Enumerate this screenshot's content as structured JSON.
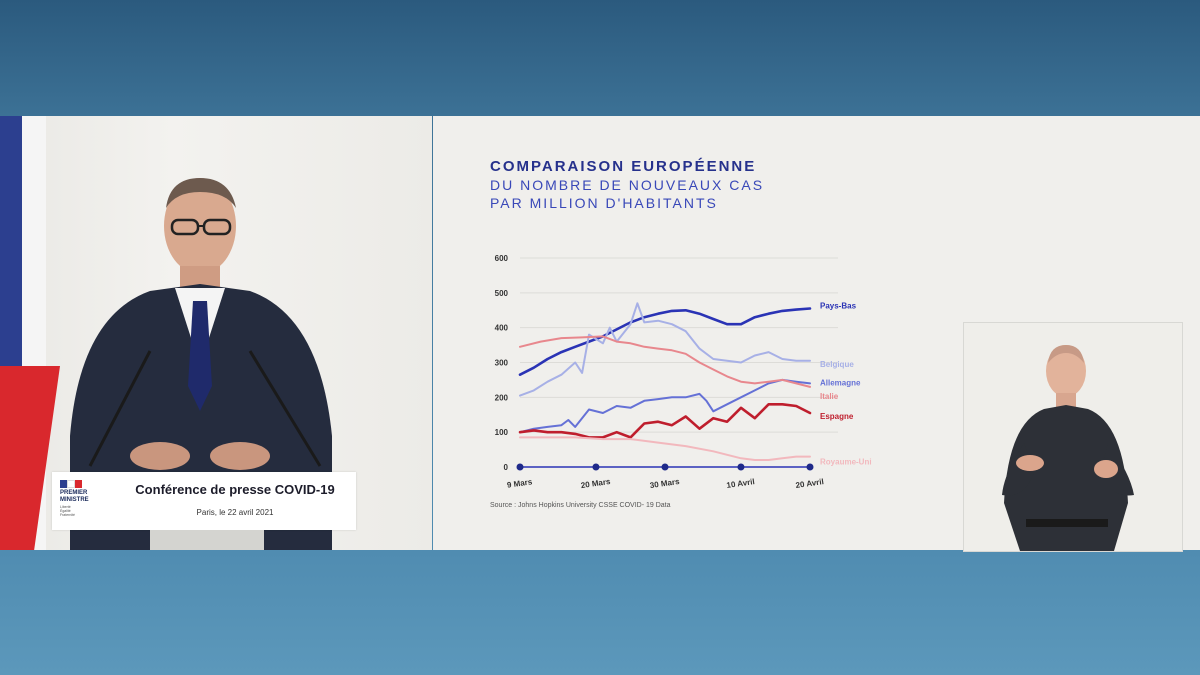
{
  "press": {
    "logo_line1": "PREMIER",
    "logo_line2": "MINISTRE",
    "logo_motto1": "Liberté",
    "logo_motto2": "Égalité",
    "logo_motto3": "Fraternité",
    "title": "Conférence de presse COVID-19",
    "subtitle": "Paris, le 22 avril 2021"
  },
  "chart_data": {
    "type": "line",
    "title_line1": "COMPARAISON EUROPÉENNE",
    "title_line2": "DU NOMBRE DE NOUVEAUX CAS",
    "title_line3": "PAR MILLION D'HABITANTS",
    "source": "Source : Johns Hopkins University CSSE COVID- 19 Data",
    "ylim": [
      0,
      600
    ],
    "yticks": [
      "0",
      "100",
      "200",
      "300",
      "400",
      "500",
      "600"
    ],
    "xlim": [
      0,
      42
    ],
    "xticks": [
      {
        "label": "9 Mars",
        "x": 0
      },
      {
        "label": "20 Mars",
        "x": 11
      },
      {
        "label": "30 Mars",
        "x": 21
      },
      {
        "label": "10 Avril",
        "x": 32
      },
      {
        "label": "20 Avril",
        "x": 42
      }
    ],
    "grid": true,
    "series": [
      {
        "name": "Pays-Bas",
        "color": "#2a33b5",
        "x": [
          0,
          2,
          4,
          6,
          8,
          10,
          12,
          14,
          16,
          18,
          20,
          22,
          24,
          26,
          28,
          30,
          32,
          34,
          36,
          38,
          40,
          42
        ],
        "y": [
          265,
          285,
          310,
          330,
          345,
          360,
          375,
          395,
          415,
          430,
          440,
          448,
          450,
          440,
          425,
          410,
          410,
          430,
          440,
          448,
          452,
          455
        ]
      },
      {
        "name": "Belgique",
        "color": "#a7b0e6",
        "x": [
          0,
          2,
          4,
          6,
          8,
          9,
          10,
          12,
          13,
          14,
          16,
          17,
          18,
          20,
          22,
          24,
          26,
          28,
          30,
          32,
          34,
          36,
          38,
          40,
          42
        ],
        "y": [
          205,
          220,
          245,
          265,
          300,
          270,
          380,
          355,
          400,
          360,
          410,
          470,
          415,
          420,
          410,
          390,
          340,
          310,
          305,
          300,
          320,
          330,
          310,
          305,
          305
        ]
      },
      {
        "name": "Allemagne",
        "color": "#6571d6",
        "x": [
          0,
          2,
          4,
          6,
          7,
          8,
          10,
          12,
          14,
          16,
          18,
          20,
          22,
          24,
          26,
          27,
          28,
          30,
          32,
          34,
          36,
          38,
          40,
          42
        ],
        "y": [
          100,
          110,
          115,
          120,
          135,
          115,
          165,
          155,
          175,
          170,
          190,
          195,
          200,
          200,
          210,
          190,
          160,
          180,
          200,
          220,
          240,
          250,
          245,
          240
        ]
      },
      {
        "name": "Italie",
        "color": "#e8878d",
        "x": [
          0,
          3,
          6,
          9,
          12,
          14,
          16,
          18,
          20,
          22,
          24,
          26,
          28,
          30,
          32,
          34,
          36,
          38,
          40,
          42
        ],
        "y": [
          345,
          360,
          370,
          372,
          375,
          360,
          355,
          345,
          340,
          335,
          325,
          300,
          280,
          260,
          245,
          240,
          245,
          250,
          240,
          230
        ]
      },
      {
        "name": "Espagne",
        "color": "#bf1e2d",
        "x": [
          0,
          2,
          4,
          6,
          8,
          10,
          12,
          14,
          16,
          18,
          20,
          22,
          24,
          26,
          28,
          30,
          32,
          34,
          36,
          38,
          40,
          42
        ],
        "y": [
          100,
          105,
          100,
          100,
          95,
          85,
          85,
          100,
          85,
          125,
          130,
          120,
          145,
          110,
          140,
          130,
          170,
          140,
          180,
          180,
          175,
          155
        ]
      },
      {
        "name": "Royaume-Uni",
        "color": "#f2b8bd",
        "x": [
          0,
          4,
          8,
          12,
          16,
          20,
          24,
          28,
          30,
          32,
          34,
          36,
          38,
          40,
          42
        ],
        "y": [
          85,
          85,
          85,
          80,
          80,
          70,
          60,
          45,
          35,
          25,
          20,
          20,
          25,
          30,
          30
        ]
      }
    ]
  },
  "colors": {
    "title_dark": "#26318c",
    "title_blue": "#3948b8",
    "axis": "#2a33b5"
  }
}
